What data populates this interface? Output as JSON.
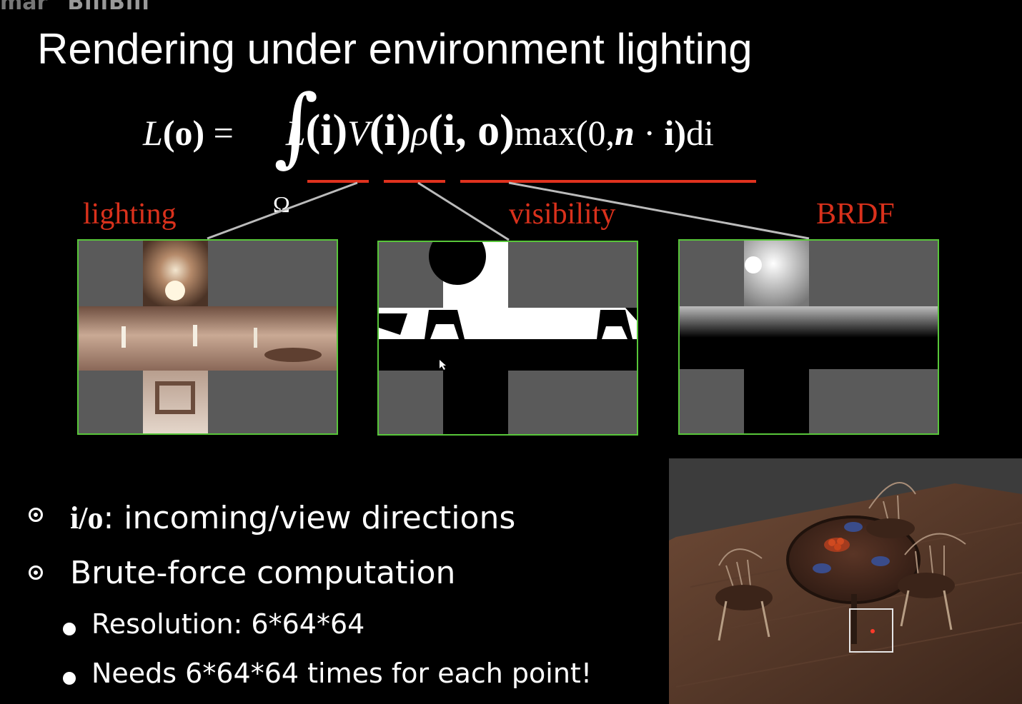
{
  "watermark": {
    "left_text": "mar",
    "brand": "BiliBili"
  },
  "slide": {
    "title": "Rendering under environment lighting",
    "equation": {
      "lhs_L": "L",
      "lhs_o": "(o)",
      "equals": "=",
      "integral": "∫",
      "domain": "Ω",
      "t_L": "L",
      "t_i1": "(i)",
      "t_V": "V",
      "t_i2": "(i)",
      "t_rho": "ρ",
      "t_io": "(i, o)",
      "t_max": "max(0,",
      "t_n": "n",
      "t_dot": " · ",
      "t_i3": "i)",
      "t_di": "di"
    },
    "labels": {
      "lighting": "lighting",
      "visibility": "visibility",
      "brdf": "BRDF"
    },
    "bullets": [
      {
        "prefix": "i/o",
        "text": ": incoming/view directions"
      },
      {
        "text": "Brute-force computation"
      }
    ],
    "subbullets": [
      {
        "text": "Resolution: 6*64*64"
      },
      {
        "text": "Needs 6*64*64 times for each point!"
      }
    ]
  },
  "colors": {
    "accent_red": "#d9311c",
    "panel_border": "#58c63a",
    "background": "#000000"
  }
}
